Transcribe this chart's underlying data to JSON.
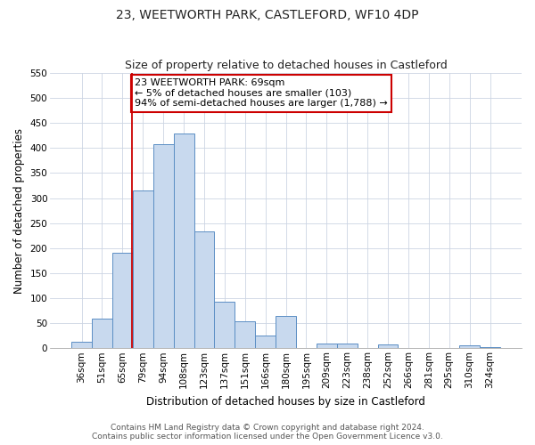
{
  "title": "23, WEETWORTH PARK, CASTLEFORD, WF10 4DP",
  "subtitle": "Size of property relative to detached houses in Castleford",
  "xlabel": "Distribution of detached houses by size in Castleford",
  "ylabel": "Number of detached properties",
  "bin_labels": [
    "36sqm",
    "51sqm",
    "65sqm",
    "79sqm",
    "94sqm",
    "108sqm",
    "123sqm",
    "137sqm",
    "151sqm",
    "166sqm",
    "180sqm",
    "195sqm",
    "209sqm",
    "223sqm",
    "238sqm",
    "252sqm",
    "266sqm",
    "281sqm",
    "295sqm",
    "310sqm",
    "324sqm"
  ],
  "bar_heights": [
    13,
    60,
    190,
    315,
    408,
    430,
    233,
    93,
    53,
    25,
    65,
    0,
    10,
    10,
    0,
    8,
    0,
    0,
    0,
    5,
    2
  ],
  "bar_color": "#c8d9ee",
  "bar_edge_color": "#5b8ec4",
  "vline_color": "#cc0000",
  "annotation_text": "23 WEETWORTH PARK: 69sqm\n← 5% of detached houses are smaller (103)\n94% of semi-detached houses are larger (1,788) →",
  "annotation_box_color": "#ffffff",
  "annotation_box_edge": "#cc0000",
  "ylim": [
    0,
    550
  ],
  "yticks": [
    0,
    50,
    100,
    150,
    200,
    250,
    300,
    350,
    400,
    450,
    500,
    550
  ],
  "footer1": "Contains HM Land Registry data © Crown copyright and database right 2024.",
  "footer2": "Contains public sector information licensed under the Open Government Licence v3.0.",
  "background_color": "#ffffff",
  "grid_color": "#ccd5e3",
  "title_fontsize": 10,
  "subtitle_fontsize": 9,
  "axis_label_fontsize": 8.5,
  "tick_fontsize": 7.5,
  "annotation_fontsize": 8,
  "footer_fontsize": 6.5
}
